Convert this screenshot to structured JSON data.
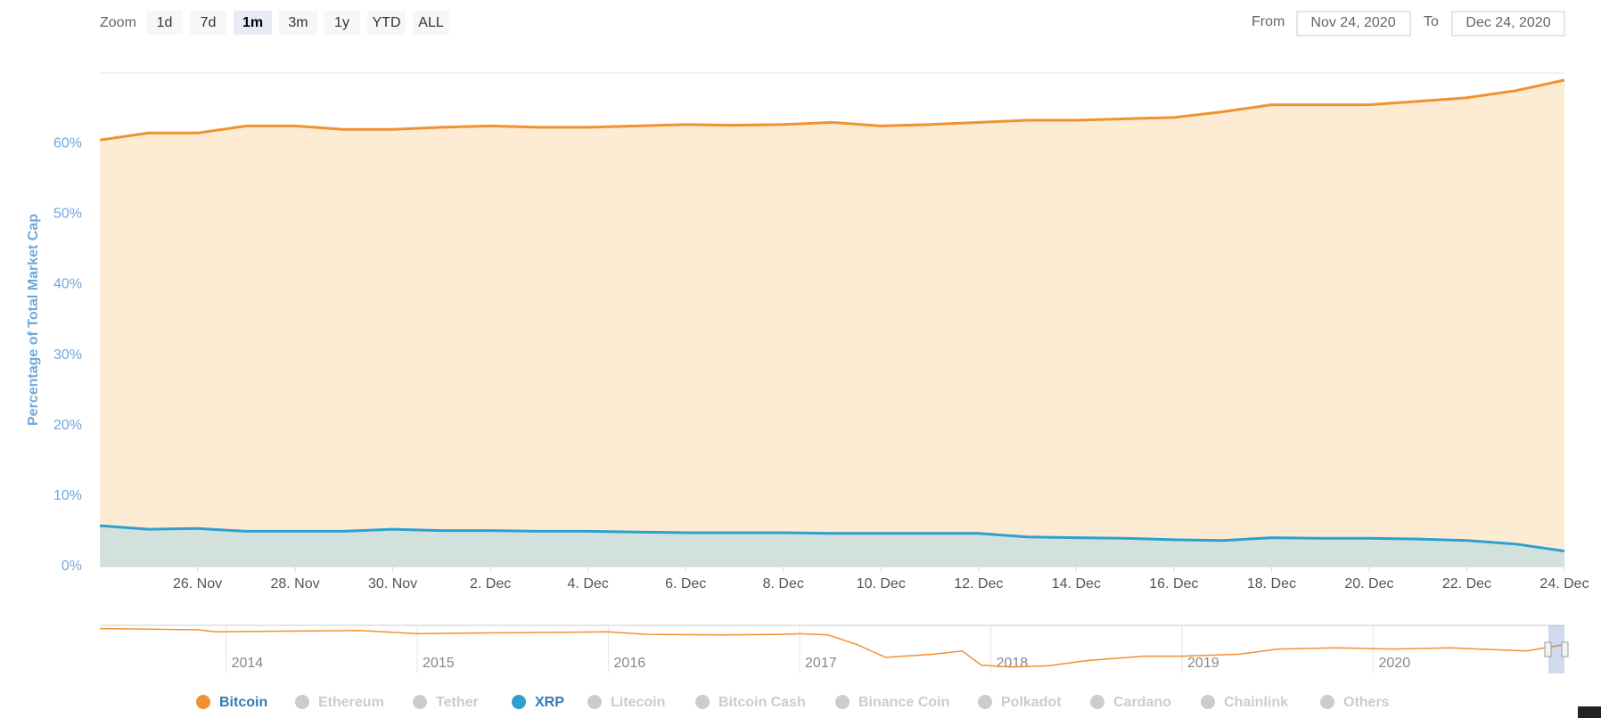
{
  "zoom": {
    "label": "Zoom",
    "buttons": [
      "1d",
      "7d",
      "1m",
      "3m",
      "1y",
      "YTD",
      "ALL"
    ],
    "selected": "1m"
  },
  "range": {
    "from_label": "From",
    "from": "Nov 24, 2020",
    "to_label": "To",
    "to": "Dec 24, 2020"
  },
  "chart_data": {
    "type": "area",
    "y_label": "Percentage of Total Market Cap",
    "x": [
      "2020-11-24",
      "2020-11-25",
      "2020-11-26",
      "2020-11-27",
      "2020-11-28",
      "2020-11-29",
      "2020-11-30",
      "2020-12-01",
      "2020-12-02",
      "2020-12-03",
      "2020-12-04",
      "2020-12-05",
      "2020-12-06",
      "2020-12-07",
      "2020-12-08",
      "2020-12-09",
      "2020-12-10",
      "2020-12-11",
      "2020-12-12",
      "2020-12-13",
      "2020-12-14",
      "2020-12-15",
      "2020-12-16",
      "2020-12-17",
      "2020-12-18",
      "2020-12-19",
      "2020-12-20",
      "2020-12-21",
      "2020-12-22",
      "2020-12-23",
      "2020-12-24"
    ],
    "xlim": [
      "2020-11-24",
      "2020-12-24"
    ],
    "xticks": [
      {
        "value": "2020-11-26",
        "label": "26. Nov"
      },
      {
        "value": "2020-11-28",
        "label": "28. Nov"
      },
      {
        "value": "2020-11-30",
        "label": "30. Nov"
      },
      {
        "value": "2020-12-02",
        "label": "2. Dec"
      },
      {
        "value": "2020-12-04",
        "label": "4. Dec"
      },
      {
        "value": "2020-12-06",
        "label": "6. Dec"
      },
      {
        "value": "2020-12-08",
        "label": "8. Dec"
      },
      {
        "value": "2020-12-10",
        "label": "10. Dec"
      },
      {
        "value": "2020-12-12",
        "label": "12. Dec"
      },
      {
        "value": "2020-12-14",
        "label": "14. Dec"
      },
      {
        "value": "2020-12-16",
        "label": "16. Dec"
      },
      {
        "value": "2020-12-18",
        "label": "18. Dec"
      },
      {
        "value": "2020-12-20",
        "label": "20. Dec"
      },
      {
        "value": "2020-12-22",
        "label": "22. Dec"
      },
      {
        "value": "2020-12-24",
        "label": "24. Dec"
      }
    ],
    "ylim": [
      0,
      70
    ],
    "yticks": [
      {
        "value": 0,
        "label": "0%"
      },
      {
        "value": 10,
        "label": "10%"
      },
      {
        "value": 20,
        "label": "20%"
      },
      {
        "value": 30,
        "label": "30%"
      },
      {
        "value": 40,
        "label": "40%"
      },
      {
        "value": 50,
        "label": "50%"
      },
      {
        "value": 60,
        "label": "60%"
      }
    ],
    "grid": true,
    "series": [
      {
        "name": "Bitcoin",
        "color": "#f0922f",
        "fill": "#fdebd3",
        "visible": true,
        "values": [
          60.5,
          61.5,
          61.5,
          62.5,
          62.5,
          62,
          62,
          62.3,
          62.5,
          62.3,
          62.3,
          62.5,
          62.7,
          62.6,
          62.7,
          63,
          62.5,
          62.7,
          63,
          63.3,
          63.3,
          63.5,
          63.7,
          64.5,
          65.5,
          65.5,
          65.5,
          66,
          66.5,
          67.5,
          69
        ]
      },
      {
        "name": "Ethereum",
        "visible": false
      },
      {
        "name": "Tether",
        "visible": false
      },
      {
        "name": "XRP",
        "color": "#2ea0cf",
        "fill": "#d2e1dc",
        "visible": true,
        "values": [
          5.8,
          5.3,
          5.4,
          5,
          5,
          5,
          5.3,
          5.1,
          5.1,
          5,
          5,
          4.9,
          4.8,
          4.8,
          4.8,
          4.7,
          4.7,
          4.7,
          4.7,
          4.2,
          4.1,
          4,
          3.8,
          3.7,
          4.1,
          4,
          4,
          3.9,
          3.7,
          3.2,
          2.2
        ]
      },
      {
        "name": "Litecoin",
        "visible": false
      },
      {
        "name": "Bitcoin Cash",
        "visible": false
      },
      {
        "name": "Binance Coin",
        "visible": false
      },
      {
        "name": "Polkadot",
        "visible": false
      },
      {
        "name": "Cardano",
        "visible": false
      },
      {
        "name": "Chainlink",
        "visible": false
      },
      {
        "name": "Others",
        "visible": false
      }
    ],
    "navigator": {
      "color": "#f0922f",
      "x": [
        2013.34,
        2013.6,
        2013.85,
        2013.95,
        2014.3,
        2014.7,
        2015.0,
        2015.3,
        2015.7,
        2016.0,
        2016.2,
        2016.6,
        2016.9,
        2017.0,
        2017.15,
        2017.3,
        2017.45,
        2017.7,
        2017.85,
        2017.95,
        2018.1,
        2018.3,
        2018.5,
        2018.8,
        2019.0,
        2019.3,
        2019.5,
        2019.8,
        2020.1,
        2020.4,
        2020.8,
        2020.96,
        2021.0
      ],
      "values": [
        95,
        94,
        93,
        90,
        91,
        92,
        87,
        88,
        89,
        90,
        86,
        85,
        86,
        87,
        85,
        70,
        50,
        55,
        60,
        38,
        35,
        37,
        45,
        52,
        52,
        55,
        63,
        65,
        63,
        65,
        60,
        68,
        70
      ],
      "xlim": [
        2013.34,
        2021.0
      ],
      "ylim": [
        25,
        100
      ],
      "xticks": [
        2014,
        2015,
        2016,
        2017,
        2018,
        2019,
        2020
      ]
    }
  }
}
